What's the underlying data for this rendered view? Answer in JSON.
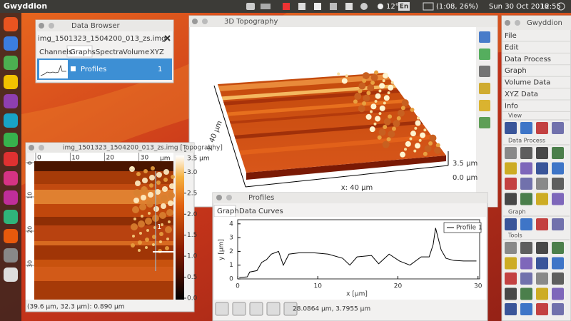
{
  "top_bar": {
    "app": "Gwyddion",
    "temperature": "12°",
    "keyboard": "En",
    "battery": "(1:08, 26%)",
    "date": "Sun 30 Oct 2016",
    "time": "12:55"
  },
  "data_browser": {
    "title": "Data Browser",
    "file": "img_1501323_1504200_013_zs.img",
    "tabs": [
      "Channels",
      "Graphs",
      "Spectra",
      "Volume",
      "XYZ"
    ],
    "row": {
      "name": "Profiles",
      "id": "1"
    }
  },
  "topography_3d": {
    "title": "3D Topography",
    "y_label": "y: 40 µm",
    "x_label": "x: 40 µm",
    "z_max": "3.5 µm",
    "z_min": "0.0 µm"
  },
  "image_window": {
    "title": "img_1501323_1504200_013_zs.img [Topography]",
    "ruler_range": [
      0,
      40
    ],
    "ruler_ticks": [
      0,
      10,
      20,
      30
    ],
    "ruler_unit": "µm",
    "colorbar_range": [
      0,
      3.5
    ],
    "colorbar_ticks": [
      {
        "value": 3.5,
        "label": "3.5 µm"
      },
      {
        "value": 3,
        "label": "3.0"
      },
      {
        "value": 2.5,
        "label": "2.5"
      },
      {
        "value": 2,
        "label": "2.0"
      },
      {
        "value": 1.5,
        "label": "1.5"
      },
      {
        "value": 1,
        "label": "1.0"
      },
      {
        "value": 0.5,
        "label": "0.5"
      },
      {
        "value": 0,
        "label": "0.0"
      }
    ],
    "marker": "1",
    "status": "(39.6 µm, 32.3 µm): 0.890 µm"
  },
  "profiles_window": {
    "title": "Profiles",
    "tabs": [
      "Graph",
      "Data",
      "Curves"
    ],
    "graph": {
      "type": "line",
      "x_label": "x [µm]",
      "y_label": "y [µm]",
      "legend": "Profile 1",
      "color": "#000000",
      "x": [
        0.2,
        1.2,
        1.5,
        2.4,
        3.0,
        3.6,
        4.2,
        5.1,
        5.7,
        6.4,
        7.7,
        9.5,
        11.3,
        13.1,
        14.0,
        14.9,
        16.7,
        17.6,
        18.9,
        20.2,
        21.5,
        22.9,
        23.9,
        24.4,
        24.7,
        25.4,
        26.0,
        26.9,
        28.2,
        29.8
      ],
      "values": [
        0.1,
        0.15,
        0.5,
        0.6,
        1.2,
        1.4,
        1.8,
        2.0,
        1.0,
        1.8,
        1.9,
        1.9,
        1.8,
        1.5,
        1.0,
        1.6,
        1.7,
        1.1,
        1.8,
        1.3,
        1.0,
        1.6,
        1.6,
        2.5,
        3.7,
        2.1,
        1.5,
        1.35,
        1.3,
        1.3
      ],
      "xlim": [
        0,
        30.2
      ],
      "ylim": [
        0,
        4.3
      ],
      "xticks": [
        0,
        10,
        20,
        30
      ],
      "yticks": [
        0,
        1,
        2,
        3,
        4
      ]
    },
    "status": "28.0864 µm, 3.7955 µm"
  },
  "toolbox": {
    "title": "Gwyddion",
    "menu": [
      "File",
      "Edit",
      "Data Process",
      "Graph",
      "Volume Data",
      "XYZ Data",
      "Info"
    ],
    "sections": [
      "View",
      "Data Process",
      "Graph",
      "Tools"
    ]
  }
}
